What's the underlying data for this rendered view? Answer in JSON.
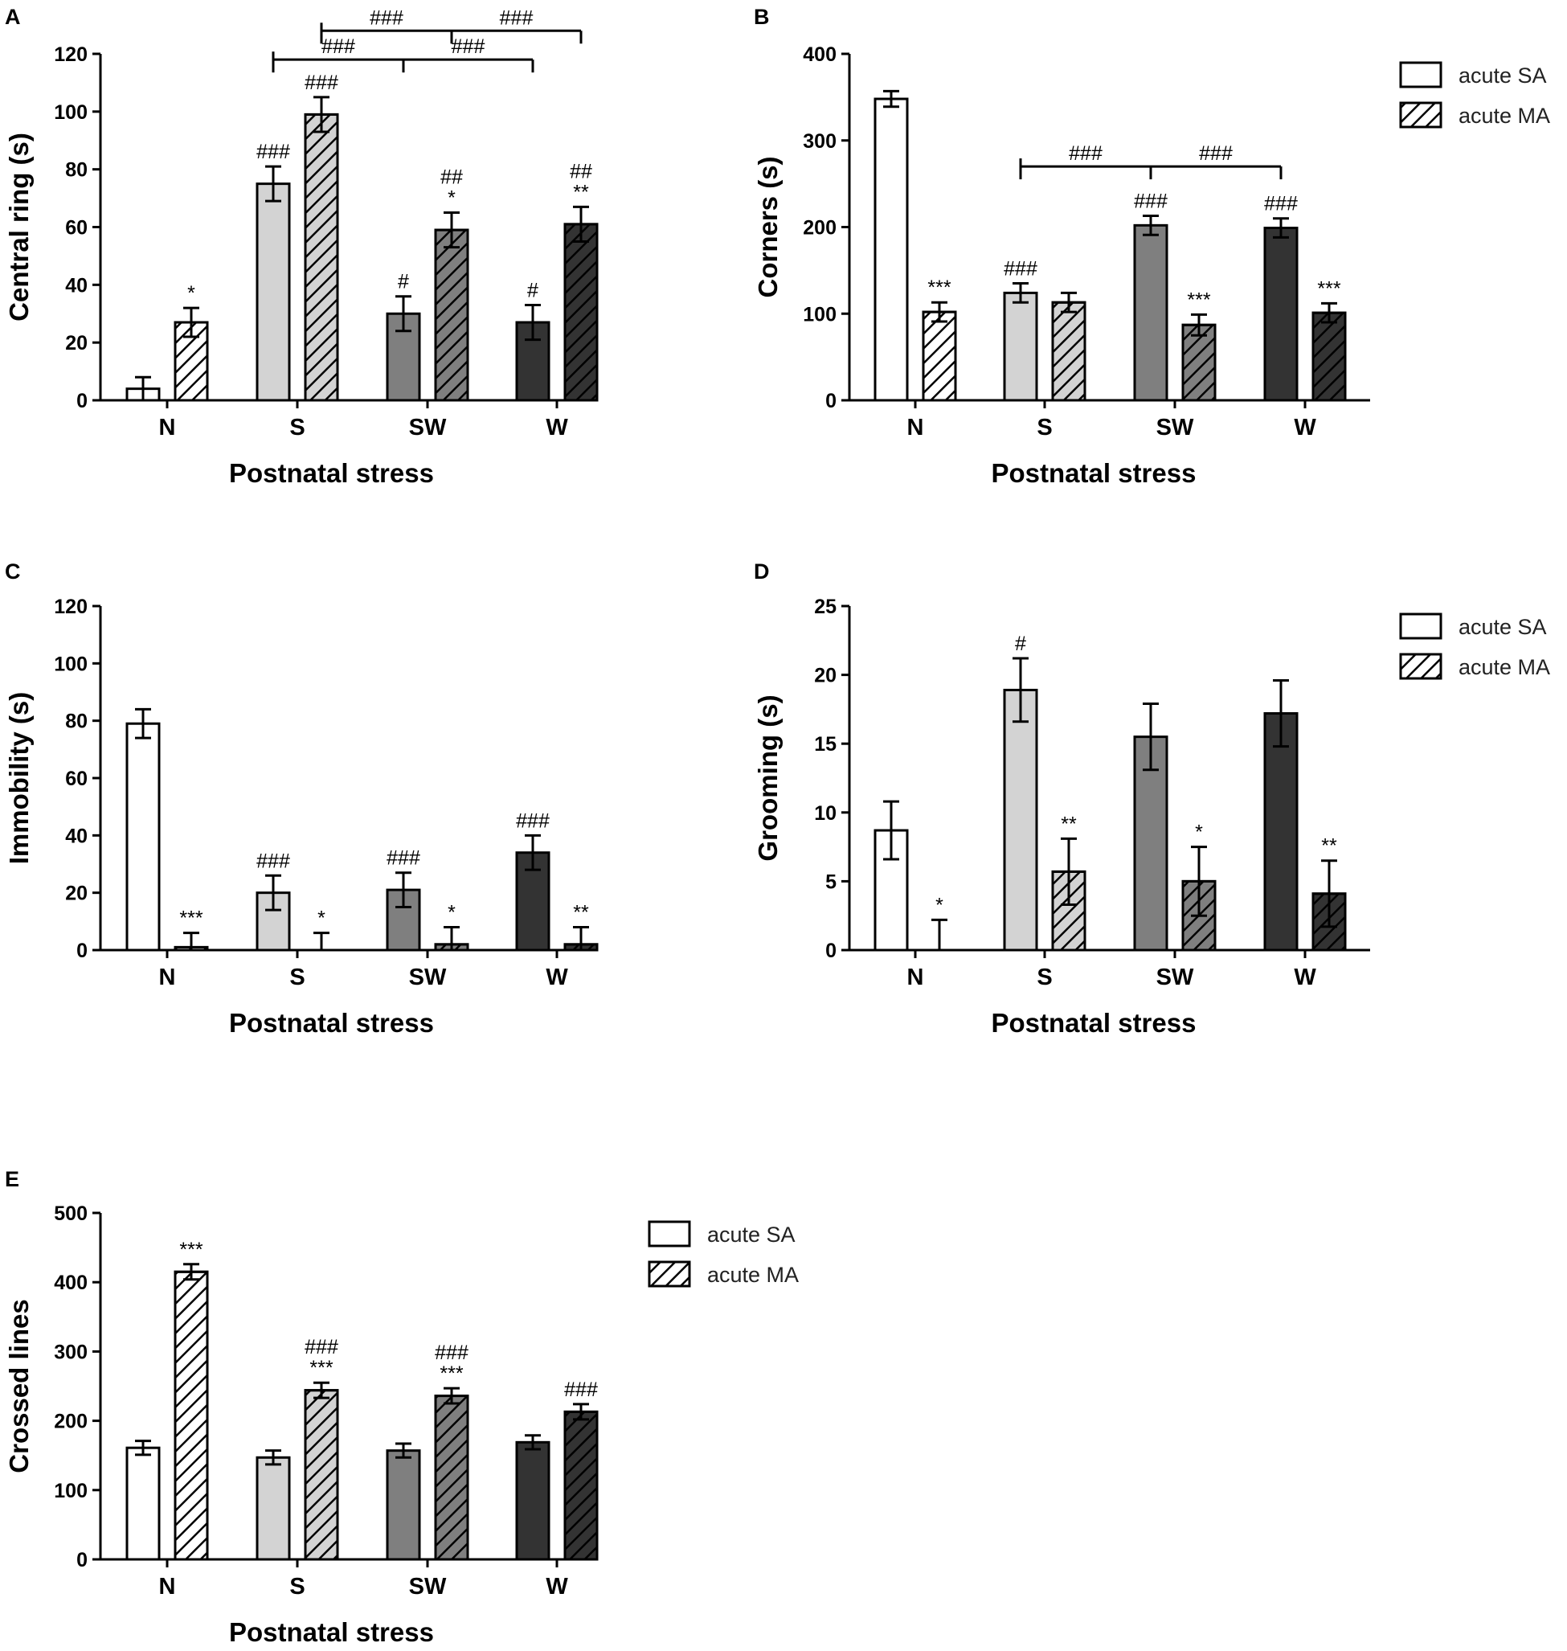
{
  "figure": {
    "title": ""
  },
  "legend": {
    "labels": [
      "acute SA",
      "acute MA"
    ]
  },
  "styling": {
    "group_colors": {
      "N": "#ffffff",
      "S": "#d3d3d3",
      "SW": "#7f7f7f",
      "W": "#333333"
    },
    "stroke": "#000000"
  },
  "chart_data": [
    {
      "panel": "A",
      "type": "bar",
      "xlabel": "Postnatal stress",
      "ylabel": "Central ring (s)",
      "categories": [
        "N",
        "S",
        "SW",
        "W"
      ],
      "ylim": [
        0,
        120
      ],
      "yticks": [
        0,
        20,
        40,
        60,
        80,
        100,
        120
      ],
      "legend": false,
      "series": [
        {
          "name": "acute SA",
          "values": [
            4,
            75,
            30,
            27
          ],
          "errors": [
            4,
            6,
            6,
            6
          ],
          "annotations": [
            "",
            "###",
            "#",
            "#"
          ]
        },
        {
          "name": "acute MA",
          "values": [
            27,
            99,
            59,
            61
          ],
          "errors": [
            5,
            6,
            6,
            6
          ],
          "annotations": [
            "*",
            "###",
            "##\n*",
            "##\n**"
          ]
        }
      ],
      "brackets": [
        {
          "from": [
            "S",
            "acute MA"
          ],
          "to": [
            "W",
            "acute MA"
          ],
          "mid": [
            "SW",
            "acute MA"
          ],
          "y": 128,
          "labels": [
            "###",
            "###"
          ]
        },
        {
          "from": [
            "S",
            "acute SA"
          ],
          "to": [
            "W",
            "acute SA"
          ],
          "mid": [
            "SW",
            "acute SA"
          ],
          "y": 118,
          "labels": [
            "###",
            "###"
          ]
        }
      ]
    },
    {
      "panel": "B",
      "type": "bar",
      "xlabel": "Postnatal stress",
      "ylabel": "Corners (s)",
      "categories": [
        "N",
        "S",
        "SW",
        "W"
      ],
      "ylim": [
        0,
        400
      ],
      "yticks": [
        0,
        100,
        200,
        300,
        400
      ],
      "legend": true,
      "series": [
        {
          "name": "acute SA",
          "values": [
            348,
            124,
            202,
            199
          ],
          "errors": [
            9,
            11,
            11,
            11
          ],
          "annotations": [
            "",
            "###",
            "###",
            "###"
          ]
        },
        {
          "name": "acute MA",
          "values": [
            102,
            113,
            87,
            101
          ],
          "errors": [
            11,
            11,
            12,
            11
          ],
          "annotations": [
            "***",
            "",
            "***",
            "***"
          ]
        }
      ],
      "brackets": [
        {
          "from": [
            "S",
            "acute SA"
          ],
          "to": [
            "W",
            "acute SA"
          ],
          "mid": [
            "SW",
            "acute SA"
          ],
          "y": 270,
          "labels": [
            "###",
            "###"
          ]
        }
      ]
    },
    {
      "panel": "C",
      "type": "bar",
      "xlabel": "Postnatal stress",
      "ylabel": "Immobility (s)",
      "categories": [
        "N",
        "S",
        "SW",
        "W"
      ],
      "ylim": [
        0,
        120
      ],
      "yticks": [
        0,
        20,
        40,
        60,
        80,
        100,
        120
      ],
      "legend": false,
      "series": [
        {
          "name": "acute SA",
          "values": [
            79,
            20,
            21,
            34
          ],
          "errors": [
            5,
            6,
            6,
            6
          ],
          "annotations": [
            "",
            "###",
            "###",
            "###"
          ]
        },
        {
          "name": "acute MA",
          "values": [
            1,
            0,
            2,
            2
          ],
          "errors": [
            5,
            6,
            6,
            6
          ],
          "annotations": [
            "***",
            "*",
            "*",
            "**"
          ]
        }
      ],
      "brackets": []
    },
    {
      "panel": "D",
      "type": "bar",
      "xlabel": "Postnatal stress",
      "ylabel": "Grooming (s)",
      "categories": [
        "N",
        "S",
        "SW",
        "W"
      ],
      "ylim": [
        0,
        25
      ],
      "yticks": [
        0,
        5,
        10,
        15,
        20,
        25
      ],
      "legend": true,
      "series": [
        {
          "name": "acute SA",
          "values": [
            8.7,
            18.9,
            15.5,
            17.2
          ],
          "errors": [
            2.1,
            2.3,
            2.4,
            2.4
          ],
          "annotations": [
            "",
            "#",
            "",
            ""
          ]
        },
        {
          "name": "acute MA",
          "values": [
            0,
            5.7,
            5.0,
            4.1
          ],
          "errors": [
            2.2,
            2.4,
            2.5,
            2.4
          ],
          "annotations": [
            "*",
            "**",
            "*",
            "**"
          ]
        }
      ],
      "brackets": []
    },
    {
      "panel": "E",
      "type": "bar",
      "xlabel": "Postnatal stress",
      "ylabel": "Crossed lines",
      "categories": [
        "N",
        "S",
        "SW",
        "W"
      ],
      "ylim": [
        0,
        500
      ],
      "yticks": [
        0,
        100,
        200,
        300,
        400,
        500
      ],
      "legend": true,
      "series": [
        {
          "name": "acute SA",
          "values": [
            161,
            147,
            157,
            169
          ],
          "errors": [
            10,
            10,
            10,
            10
          ],
          "annotations": [
            "",
            "",
            "",
            ""
          ]
        },
        {
          "name": "acute MA",
          "values": [
            415,
            244,
            236,
            213
          ],
          "errors": [
            11,
            11,
            11,
            11
          ],
          "annotations": [
            "***",
            "###\n***",
            "###\n***",
            "###"
          ]
        }
      ],
      "brackets": []
    }
  ]
}
